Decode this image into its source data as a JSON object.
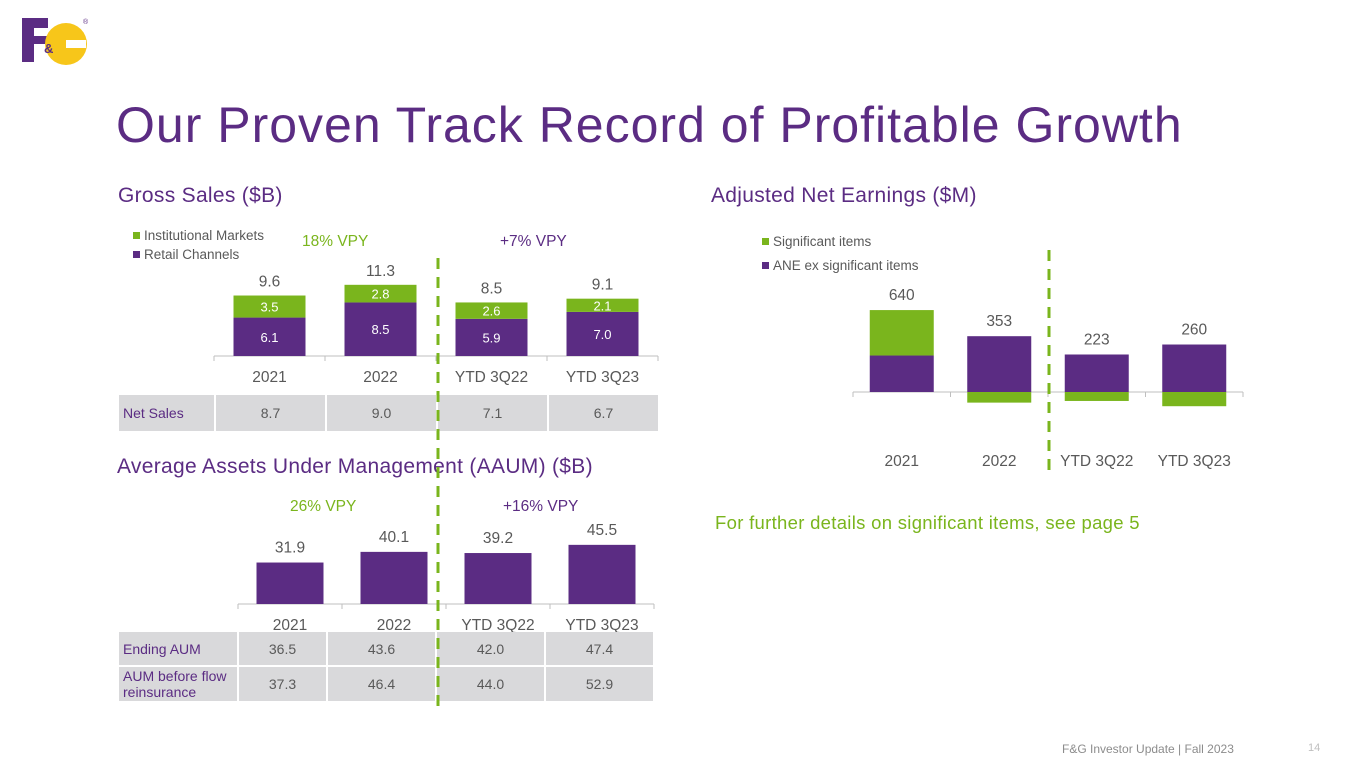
{
  "colors": {
    "purple": "#5b2c83",
    "green": "#7ab51d",
    "gold": "#f7c61a"
  },
  "logo": {
    "text_f": "F",
    "text_amp": "&",
    "text_g": "G",
    "registered": "®"
  },
  "page_title": "Our Proven Track Record of Profitable Growth",
  "footnote": "For further details on significant items, see page 5",
  "footer": {
    "text": "F&G Investor Update | Fall 2023",
    "page_number": "14"
  },
  "gross_sales": {
    "title": "Gross Sales ($B)",
    "legend": {
      "institutional": "Institutional Markets",
      "retail": "Retail Channels"
    },
    "vpy_left": "18% VPY",
    "vpy_right": "+7% VPY",
    "net_sales_label": "Net Sales",
    "net_sales": [
      "8.7",
      "9.0",
      "7.1",
      "6.7"
    ]
  },
  "aaum": {
    "title": "Average Assets Under Management (AAUM) ($B)",
    "vpy_left": "26% VPY",
    "vpy_right": "+16% VPY",
    "rows": [
      {
        "label": "Ending AUM",
        "values": [
          "36.5",
          "43.6",
          "42.0",
          "47.4"
        ]
      },
      {
        "label": "AUM before flow reinsurance",
        "values": [
          "37.3",
          "46.4",
          "44.0",
          "52.9"
        ]
      }
    ]
  },
  "ane": {
    "title": "Adjusted Net Earnings ($M)",
    "legend": {
      "significant": "Significant items",
      "ex_significant": "ANE ex significant items"
    }
  },
  "chart_data": [
    {
      "id": "gross-sales",
      "type": "bar",
      "stacked": true,
      "title": "Gross Sales ($B)",
      "categories": [
        "2021",
        "2022",
        "YTD 3Q22",
        "YTD 3Q23"
      ],
      "series": [
        {
          "name": "Retail Channels",
          "values": [
            6.1,
            8.5,
            5.9,
            7.0
          ],
          "labels": [
            "6.1",
            "8.5",
            "5.9",
            "7.0"
          ]
        },
        {
          "name": "Institutional Markets",
          "values": [
            3.5,
            2.8,
            2.6,
            2.1
          ],
          "labels": [
            "3.5",
            "2.8",
            "2.6",
            "2.1"
          ]
        }
      ],
      "totals": [
        "9.6",
        "11.3",
        "8.5",
        "9.1"
      ],
      "ylim": [
        0,
        12
      ]
    },
    {
      "id": "aaum",
      "type": "bar",
      "title": "Average Assets Under Management (AAUM) ($B)",
      "categories": [
        "2021",
        "2022",
        "YTD 3Q22",
        "YTD 3Q23"
      ],
      "values": [
        31.9,
        40.1,
        39.2,
        45.5
      ],
      "labels": [
        "31.9",
        "40.1",
        "39.2",
        "45.5"
      ],
      "ylim": [
        0,
        50
      ]
    },
    {
      "id": "ane",
      "type": "bar",
      "stacked": true,
      "title": "Adjusted Net Earnings ($M)",
      "categories": [
        "2021",
        "2022",
        "YTD 3Q22",
        "YTD 3Q23"
      ],
      "series": [
        {
          "name": "ANE ex significant items",
          "values": [
            285,
            436,
            293,
            371
          ]
        },
        {
          "name": "Significant items",
          "values": [
            355,
            -83,
            -70,
            -111
          ]
        }
      ],
      "totals": [
        "640",
        "353",
        "223",
        "260"
      ],
      "ylim": [
        -150,
        700
      ]
    }
  ]
}
